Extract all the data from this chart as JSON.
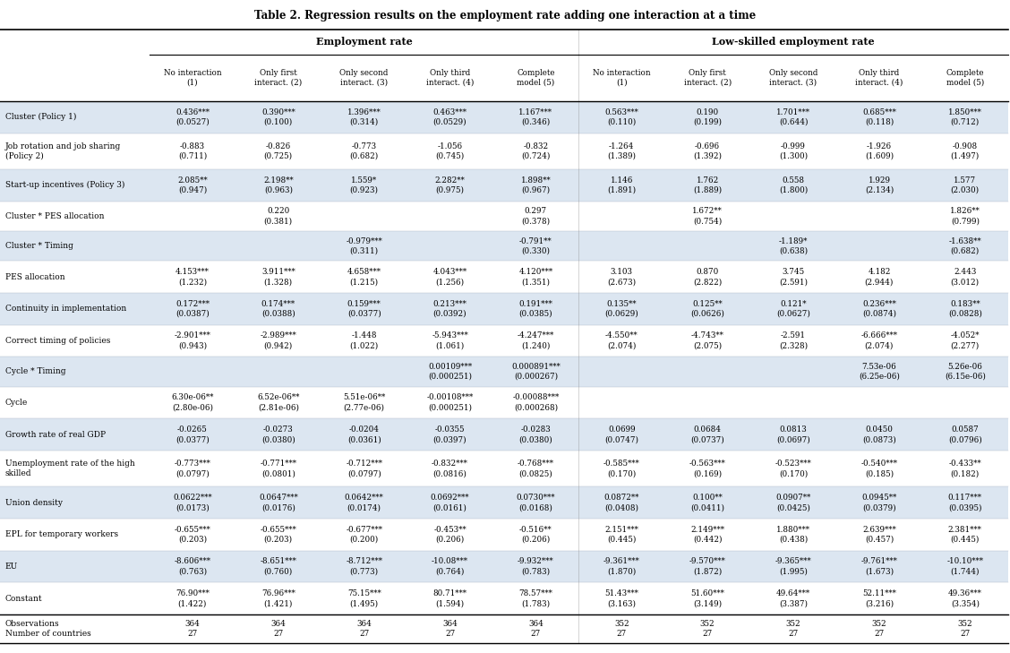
{
  "title": "Table 2. Regression results on the employment rate adding one interaction at a time",
  "col_headers": [
    "No interaction\n(1)",
    "Only first\ninteract. (2)",
    "Only second\ninteract. (3)",
    "Only third\ninteract. (4)",
    "Complete\nmodel (5)",
    "No interaction\n(1)",
    "Only first\ninteract. (2)",
    "Only second\ninteract. (3)",
    "Only third\ninteract. (4)",
    "Complete\nmodel (5)"
  ],
  "row_labels": [
    "Cluster (Policy 1)",
    "Job rotation and job sharing\n(Policy 2)",
    "Start-up incentives (Policy 3)",
    "Cluster * PES allocation",
    "Cluster * Timing",
    "PES allocation",
    "Continuity in implementation",
    "Correct timing of policies",
    "Cycle * Timing",
    "Cycle",
    "Growth rate of real GDP",
    "Unemployment rate of the high\nskilled",
    "Union density",
    "EPL for temporary workers",
    "EU",
    "Constant",
    "Observations\nNumber of countries"
  ],
  "data": [
    [
      "0.436***\n(0.0527)",
      "0.390***\n(0.100)",
      "1.396***\n(0.314)",
      "0.463***\n(0.0529)",
      "1.167***\n(0.346)",
      "0.563***\n(0.110)",
      "0.190\n(0.199)",
      "1.701***\n(0.644)",
      "0.685***\n(0.118)",
      "1.850***\n(0.712)"
    ],
    [
      "-0.883\n(0.711)",
      "-0.826\n(0.725)",
      "-0.773\n(0.682)",
      "-1.056\n(0.745)",
      "-0.832\n(0.724)",
      "-1.264\n(1.389)",
      "-0.696\n(1.392)",
      "-0.999\n(1.300)",
      "-1.926\n(1.609)",
      "-0.908\n(1.497)"
    ],
    [
      "2.085**\n(0.947)",
      "2.198**\n(0.963)",
      "1.559*\n(0.923)",
      "2.282**\n(0.975)",
      "1.898**\n(0.967)",
      "1.146\n(1.891)",
      "1.762\n(1.889)",
      "0.558\n(1.800)",
      "1.929\n(2.134)",
      "1.577\n(2.030)"
    ],
    [
      "",
      "0.220\n(0.381)",
      "",
      "",
      "0.297\n(0.378)",
      "",
      "1.672**\n(0.754)",
      "",
      "",
      "1.826**\n(0.799)"
    ],
    [
      "",
      "",
      "-0.979***\n(0.311)",
      "",
      "-0.791**\n(0.330)",
      "",
      "",
      "-1.189*\n(0.638)",
      "",
      "-1.638**\n(0.682)"
    ],
    [
      "4.153***\n(1.232)",
      "3.911***\n(1.328)",
      "4.658***\n(1.215)",
      "4.043***\n(1.256)",
      "4.120***\n(1.351)",
      "3.103\n(2.673)",
      "0.870\n(2.822)",
      "3.745\n(2.591)",
      "4.182\n(2.944)",
      "2.443\n(3.012)"
    ],
    [
      "0.172***\n(0.0387)",
      "0.174***\n(0.0388)",
      "0.159***\n(0.0377)",
      "0.213***\n(0.0392)",
      "0.191***\n(0.0385)",
      "0.135**\n(0.0629)",
      "0.125**\n(0.0626)",
      "0.121*\n(0.0627)",
      "0.236***\n(0.0874)",
      "0.183**\n(0.0828)"
    ],
    [
      "-2.901***\n(0.943)",
      "-2.989***\n(0.942)",
      "-1.448\n(1.022)",
      "-5.943***\n(1.061)",
      "-4.247***\n(1.240)",
      "-4.550**\n(2.074)",
      "-4.743**\n(2.075)",
      "-2.591\n(2.328)",
      "-6.666***\n(2.074)",
      "-4.052*\n(2.277)"
    ],
    [
      "",
      "",
      "",
      "0.00109***\n(0.000251)",
      "0.000891***\n(0.000267)",
      "",
      "",
      "",
      "7.53e-06\n(6.25e-06)",
      "5.26e-06\n(6.15e-06)"
    ],
    [
      "6.30e-06**\n(2.80e-06)",
      "6.52e-06**\n(2.81e-06)",
      "5.51e-06**\n(2.77e-06)",
      "-0.00108***\n(0.000251)",
      "-0.00088***\n(0.000268)",
      "",
      "",
      "",
      "",
      ""
    ],
    [
      "-0.0265\n(0.0377)",
      "-0.0273\n(0.0380)",
      "-0.0204\n(0.0361)",
      "-0.0355\n(0.0397)",
      "-0.0283\n(0.0380)",
      "0.0699\n(0.0747)",
      "0.0684\n(0.0737)",
      "0.0813\n(0.0697)",
      "0.0450\n(0.0873)",
      "0.0587\n(0.0796)"
    ],
    [
      "-0.773***\n(0.0797)",
      "-0.771***\n(0.0801)",
      "-0.712***\n(0.0797)",
      "-0.832***\n(0.0816)",
      "-0.768***\n(0.0825)",
      "-0.585***\n(0.170)",
      "-0.563***\n(0.169)",
      "-0.523***\n(0.170)",
      "-0.540***\n(0.185)",
      "-0.433**\n(0.182)"
    ],
    [
      "0.0622***\n(0.0173)",
      "0.0647***\n(0.0176)",
      "0.0642***\n(0.0174)",
      "0.0692***\n(0.0161)",
      "0.0730***\n(0.0168)",
      "0.0872**\n(0.0408)",
      "0.100**\n(0.0411)",
      "0.0907**\n(0.0425)",
      "0.0945**\n(0.0379)",
      "0.117***\n(0.0395)"
    ],
    [
      "-0.655***\n(0.203)",
      "-0.655***\n(0.203)",
      "-0.677***\n(0.200)",
      "-0.453**\n(0.206)",
      "-0.516**\n(0.206)",
      "2.151***\n(0.445)",
      "2.149***\n(0.442)",
      "1.880***\n(0.438)",
      "2.639***\n(0.457)",
      "2.381***\n(0.445)"
    ],
    [
      "-8.606***\n(0.763)",
      "-8.651***\n(0.760)",
      "-8.712***\n(0.773)",
      "-10.08***\n(0.764)",
      "-9.932***\n(0.783)",
      "-9.361***\n(1.870)",
      "-9.570***\n(1.872)",
      "-9.365***\n(1.995)",
      "-9.761***\n(1.673)",
      "-10.10***\n(1.744)"
    ],
    [
      "76.90***\n(1.422)",
      "76.96***\n(1.421)",
      "75.15***\n(1.495)",
      "80.71***\n(1.594)",
      "78.57***\n(1.783)",
      "51.43***\n(3.163)",
      "51.60***\n(3.149)",
      "49.64***\n(3.387)",
      "52.11***\n(3.216)",
      "49.36***\n(3.354)"
    ],
    [
      "364\n27",
      "364\n27",
      "364\n27",
      "364\n27",
      "364\n27",
      "352\n27",
      "352\n27",
      "352\n27",
      "352\n27",
      "352\n27"
    ]
  ],
  "row_bg": [
    "#dce6f1",
    "#ffffff",
    "#dce6f1",
    "#ffffff",
    "#dce6f1",
    "#ffffff",
    "#dce6f1",
    "#ffffff",
    "#dce6f1",
    "#ffffff",
    "#dce6f1",
    "#ffffff",
    "#dce6f1",
    "#ffffff",
    "#dce6f1",
    "#ffffff",
    "#ffffff"
  ],
  "bg_color_light": "#dce6f1",
  "bg_color_white": "#ffffff",
  "text_color": "#000000",
  "font_family": "DejaVu Serif"
}
